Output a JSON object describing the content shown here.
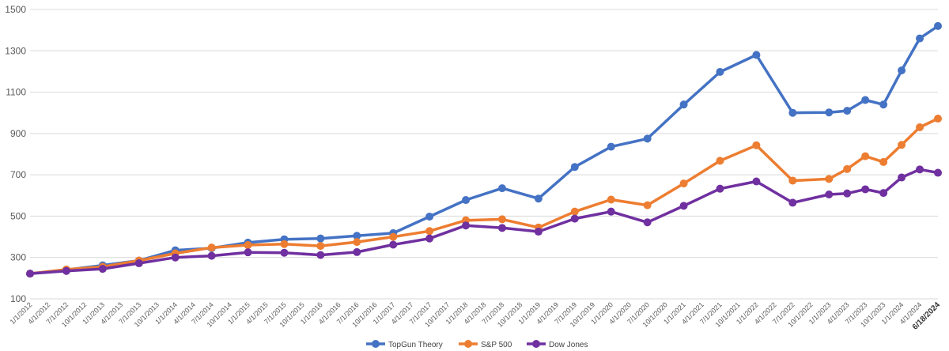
{
  "chart_data": {
    "type": "line",
    "title": "",
    "xlabel": "",
    "ylabel": "",
    "ylim": [
      100,
      1500
    ],
    "yticks": [
      100,
      300,
      500,
      700,
      900,
      1100,
      1300,
      1500
    ],
    "grid": true,
    "legend_position": "bottom",
    "x": [
      "1/1/2012",
      "4/1/2012",
      "7/1/2012",
      "10/1/2012",
      "1/1/2013",
      "4/1/2013",
      "7/1/2013",
      "10/1/2013",
      "1/1/2014",
      "4/1/2014",
      "7/1/2014",
      "10/1/2014",
      "1/1/2015",
      "4/1/2015",
      "7/1/2015",
      "10/1/2015",
      "1/1/2016",
      "4/1/2016",
      "7/1/2016",
      "10/1/2016",
      "1/1/2017",
      "4/1/2017",
      "7/1/2017",
      "10/1/2017",
      "1/1/2018",
      "4/1/2018",
      "7/1/2018",
      "10/1/2018",
      "1/1/2019",
      "4/1/2019",
      "7/1/2019",
      "10/1/2019",
      "1/1/2020",
      "4/1/2020",
      "7/1/2020",
      "10/1/2020",
      "1/1/2021",
      "4/1/2021",
      "7/1/2021",
      "10/1/2021",
      "1/1/2022",
      "4/1/2022",
      "7/1/2022",
      "10/1/2022",
      "1/1/2023",
      "4/1/2023",
      "7/1/2023",
      "10/1/2023",
      "1/1/2024",
      "4/1/2024",
      "6/18/2024"
    ],
    "bold_x_labels": [
      "6/18/2024"
    ],
    "series": [
      {
        "name": "TopGun Theory",
        "color": "#4472C4",
        "points": [
          [
            "1/1/2012",
            222
          ],
          [
            "7/1/2012",
            240
          ],
          [
            "1/1/2013",
            262
          ],
          [
            "7/1/2013",
            285
          ],
          [
            "1/1/2014",
            335
          ],
          [
            "7/1/2014",
            345
          ],
          [
            "1/1/2015",
            372
          ],
          [
            "7/1/2015",
            388
          ],
          [
            "1/1/2016",
            392
          ],
          [
            "7/1/2016",
            405
          ],
          [
            "1/1/2017",
            418
          ],
          [
            "7/1/2017",
            498
          ],
          [
            "1/1/2018",
            578
          ],
          [
            "7/1/2018",
            635
          ],
          [
            "1/1/2019",
            585
          ],
          [
            "7/1/2019",
            738
          ],
          [
            "1/1/2020",
            836
          ],
          [
            "7/1/2020",
            875
          ],
          [
            "1/1/2021",
            1040
          ],
          [
            "7/1/2021",
            1198
          ],
          [
            "1/1/2022",
            1280
          ],
          [
            "7/1/2022",
            1000
          ],
          [
            "1/1/2023",
            1002
          ],
          [
            "4/1/2023",
            1010
          ],
          [
            "7/1/2023",
            1062
          ],
          [
            "10/1/2023",
            1040
          ],
          [
            "1/1/2024",
            1205
          ],
          [
            "4/1/2024",
            1360
          ],
          [
            "6/18/2024",
            1420
          ]
        ]
      },
      {
        "name": "S&P 500",
        "color": "#ED7D31",
        "points": [
          [
            "1/1/2012",
            222
          ],
          [
            "7/1/2012",
            242
          ],
          [
            "1/1/2013",
            255
          ],
          [
            "7/1/2013",
            285
          ],
          [
            "1/1/2014",
            320
          ],
          [
            "7/1/2014",
            348
          ],
          [
            "1/1/2015",
            360
          ],
          [
            "7/1/2015",
            365
          ],
          [
            "1/1/2016",
            356
          ],
          [
            "7/1/2016",
            375
          ],
          [
            "1/1/2017",
            400
          ],
          [
            "7/1/2017",
            428
          ],
          [
            "1/1/2018",
            480
          ],
          [
            "7/1/2018",
            485
          ],
          [
            "1/1/2019",
            445
          ],
          [
            "7/1/2019",
            522
          ],
          [
            "1/1/2020",
            580
          ],
          [
            "7/1/2020",
            553
          ],
          [
            "1/1/2021",
            658
          ],
          [
            "7/1/2021",
            768
          ],
          [
            "1/1/2022",
            843
          ],
          [
            "7/1/2022",
            672
          ],
          [
            "1/1/2023",
            680
          ],
          [
            "4/1/2023",
            728
          ],
          [
            "7/1/2023",
            790
          ],
          [
            "10/1/2023",
            762
          ],
          [
            "1/1/2024",
            845
          ],
          [
            "4/1/2024",
            930
          ],
          [
            "6/18/2024",
            972
          ]
        ]
      },
      {
        "name": "Dow Jones",
        "color": "#7030A0",
        "points": [
          [
            "1/1/2012",
            222
          ],
          [
            "7/1/2012",
            235
          ],
          [
            "1/1/2013",
            245
          ],
          [
            "7/1/2013",
            272
          ],
          [
            "1/1/2014",
            300
          ],
          [
            "7/1/2014",
            308
          ],
          [
            "1/1/2015",
            325
          ],
          [
            "7/1/2015",
            323
          ],
          [
            "1/1/2016",
            312
          ],
          [
            "7/1/2016",
            326
          ],
          [
            "1/1/2017",
            362
          ],
          [
            "7/1/2017",
            392
          ],
          [
            "1/1/2018",
            455
          ],
          [
            "7/1/2018",
            443
          ],
          [
            "1/1/2019",
            425
          ],
          [
            "7/1/2019",
            488
          ],
          [
            "1/1/2020",
            522
          ],
          [
            "7/1/2020",
            470
          ],
          [
            "1/1/2021",
            550
          ],
          [
            "7/1/2021",
            633
          ],
          [
            "1/1/2022",
            668
          ],
          [
            "7/1/2022",
            565
          ],
          [
            "1/1/2023",
            605
          ],
          [
            "4/1/2023",
            610
          ],
          [
            "7/1/2023",
            630
          ],
          [
            "10/1/2023",
            612
          ],
          [
            "1/1/2024",
            687
          ],
          [
            "4/1/2024",
            726
          ],
          [
            "6/18/2024",
            710
          ]
        ]
      }
    ]
  }
}
